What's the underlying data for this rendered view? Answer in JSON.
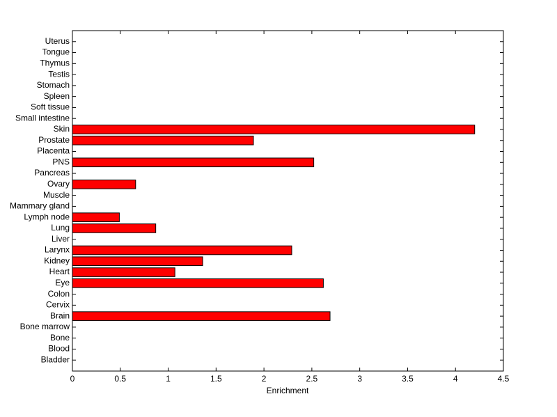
{
  "chart_data": {
    "type": "barh",
    "xlabel": "Enrichment",
    "categories": [
      "Bladder",
      "Blood",
      "Bone",
      "Bone marrow",
      "Brain",
      "Cervix",
      "Colon",
      "Eye",
      "Heart",
      "Kidney",
      "Larynx",
      "Liver",
      "Lung",
      "Lymph node",
      "Mammary gland",
      "Muscle",
      "Ovary",
      "Pancreas",
      "PNS",
      "Placenta",
      "Prostate",
      "Skin",
      "Small intestine",
      "Soft tissue",
      "Spleen",
      "Stomach",
      "Testis",
      "Thymus",
      "Tongue",
      "Uterus"
    ],
    "values": [
      0,
      0,
      0,
      0,
      2.69,
      0,
      0,
      2.62,
      1.07,
      1.36,
      2.29,
      0,
      0.87,
      0.49,
      0,
      0,
      0.66,
      0,
      2.52,
      0,
      1.89,
      4.2,
      0,
      0,
      0,
      0,
      0,
      0,
      0,
      0
    ],
    "color": "#ff0000",
    "xlim": [
      0,
      4.5
    ],
    "xticks": [
      0,
      0.5,
      1,
      1.5,
      2,
      2.5,
      3,
      3.5,
      4,
      4.5
    ]
  }
}
